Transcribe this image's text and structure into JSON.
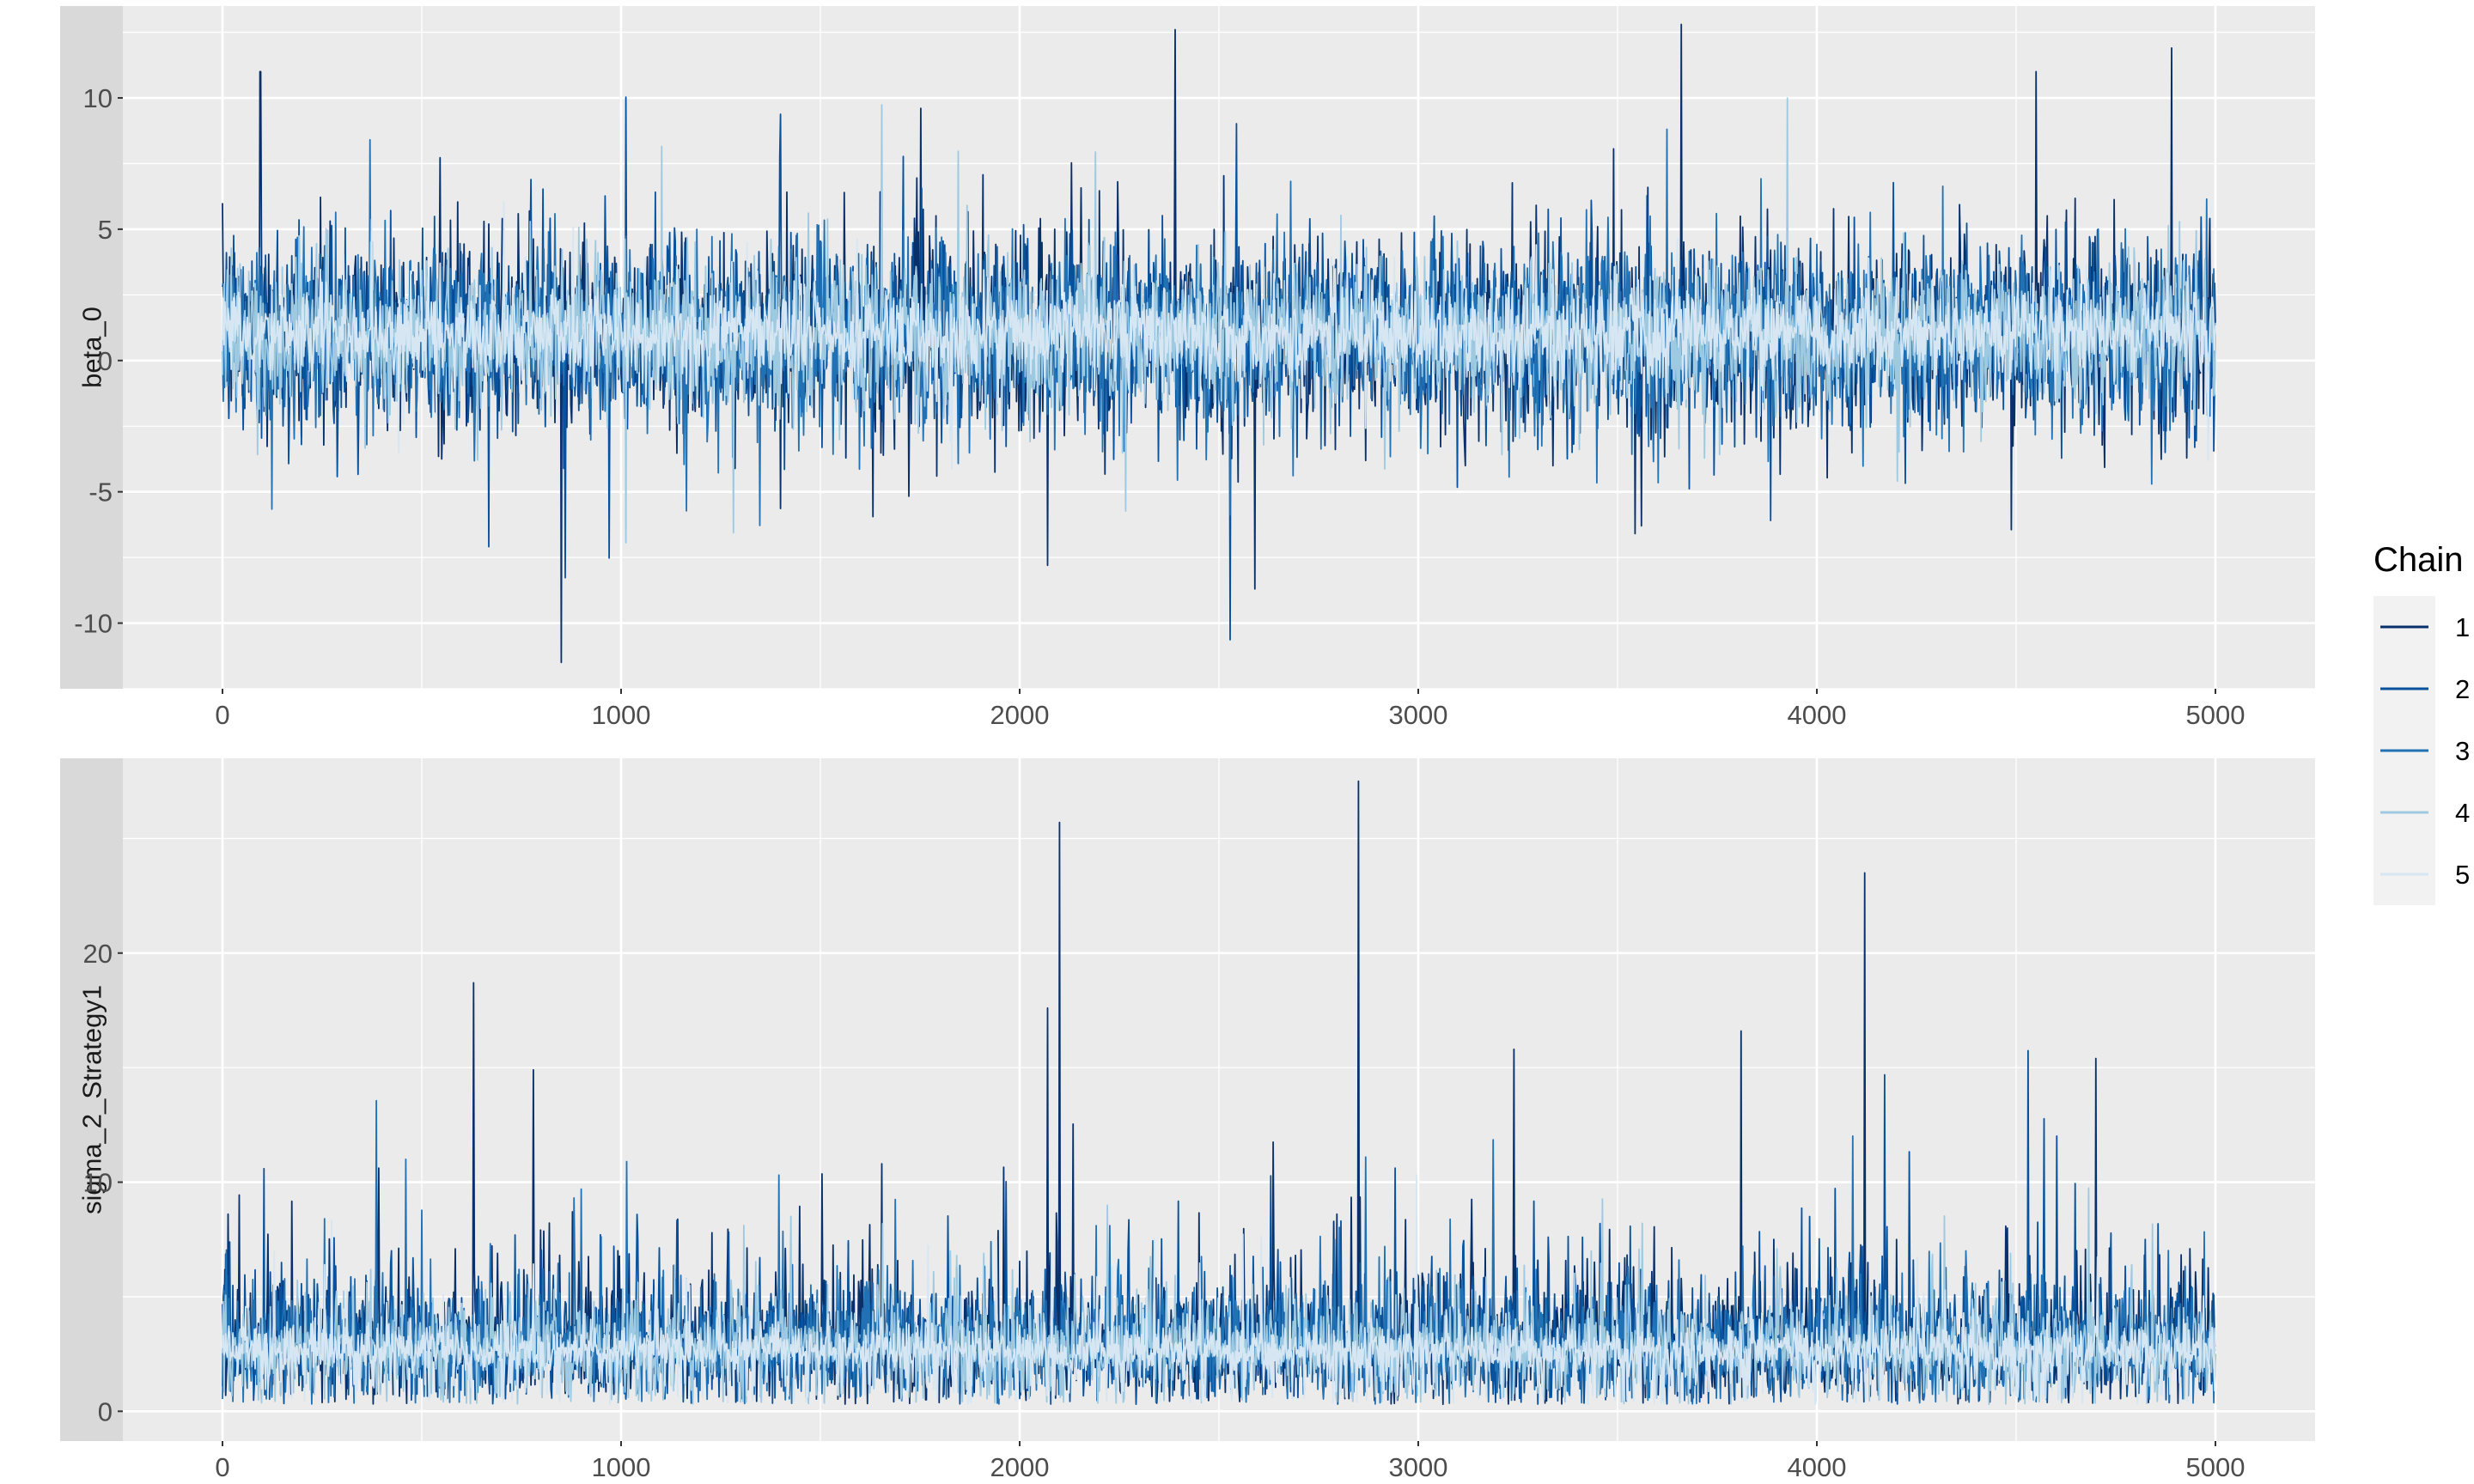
{
  "legend": {
    "title": "Chain",
    "entries": [
      {
        "label": "1",
        "color": "#08306b"
      },
      {
        "label": "2",
        "color": "#08519c"
      },
      {
        "label": "3",
        "color": "#2171b5"
      },
      {
        "label": "4",
        "color": "#9ecae1"
      },
      {
        "label": "5",
        "color": "#d6e6f2"
      }
    ]
  },
  "colors": {
    "panel_background": "#ebebeb",
    "grid_major": "#ffffff",
    "strip_background": "#d9d9d9"
  },
  "chart_data": [
    {
      "type": "line",
      "facet_label": "beta_0",
      "xlim": [
        -250,
        5250
      ],
      "ylim": [
        -12.5,
        13.5
      ],
      "x_ticks": [
        0,
        1000,
        2000,
        3000,
        4000,
        5000
      ],
      "x_tick_labels": [
        "0",
        "1000",
        "2000",
        "3000",
        "4000",
        "5000"
      ],
      "y_ticks": [
        -10,
        -5,
        0,
        5,
        10
      ],
      "y_tick_labels": [
        "-10",
        "-5",
        "0",
        "5",
        "10"
      ],
      "iterations": [
        0,
        5000
      ],
      "series": [
        {
          "name": "1",
          "center": 1.0,
          "spread": 1.8
        },
        {
          "name": "2",
          "center": 1.0,
          "spread": 1.7
        },
        {
          "name": "3",
          "center": 1.0,
          "spread": 1.6
        },
        {
          "name": "4",
          "center": 1.0,
          "spread": 1.4
        },
        {
          "name": "5",
          "center": 1.0,
          "spread": 0.9
        }
      ],
      "notable_points": [
        {
          "x": 850,
          "y": -11.5
        },
        {
          "x": 2390,
          "y": 12.6
        },
        {
          "x": 3660,
          "y": 12.8
        },
        {
          "x": 4550,
          "y": 11.0
        },
        {
          "x": 4890,
          "y": 11.9
        },
        {
          "x": 2590,
          "y": -8.7
        },
        {
          "x": 2070,
          "y": -7.8
        },
        {
          "x": 95,
          "y": 11.0
        }
      ]
    },
    {
      "type": "line",
      "facet_label": "sigma_2_Strategy1",
      "xlim": [
        -250,
        5250
      ],
      "ylim": [
        -1.3,
        28.5
      ],
      "x_ticks": [
        0,
        1000,
        2000,
        3000,
        4000,
        5000
      ],
      "x_tick_labels": [
        "0",
        "1000",
        "2000",
        "3000",
        "4000",
        "5000"
      ],
      "y_ticks": [
        0,
        10,
        20
      ],
      "y_tick_labels": [
        "0",
        "10",
        "20"
      ],
      "iterations": [
        0,
        5000
      ],
      "series": [
        {
          "name": "1",
          "center": 3.0,
          "spread": 1.6
        },
        {
          "name": "2",
          "center": 3.0,
          "spread": 1.5
        },
        {
          "name": "3",
          "center": 2.9,
          "spread": 1.4
        },
        {
          "name": "4",
          "center": 2.8,
          "spread": 1.2
        },
        {
          "name": "5",
          "center": 2.7,
          "spread": 0.8
        }
      ],
      "notable_points": [
        {
          "x": 2850,
          "y": 27.5
        },
        {
          "x": 2100,
          "y": 25.7
        },
        {
          "x": 4120,
          "y": 23.5
        },
        {
          "x": 630,
          "y": 18.7
        },
        {
          "x": 2070,
          "y": 17.6
        },
        {
          "x": 3810,
          "y": 16.6
        },
        {
          "x": 3240,
          "y": 15.8
        },
        {
          "x": 4700,
          "y": 15.4
        },
        {
          "x": 780,
          "y": 14.9
        }
      ]
    }
  ]
}
